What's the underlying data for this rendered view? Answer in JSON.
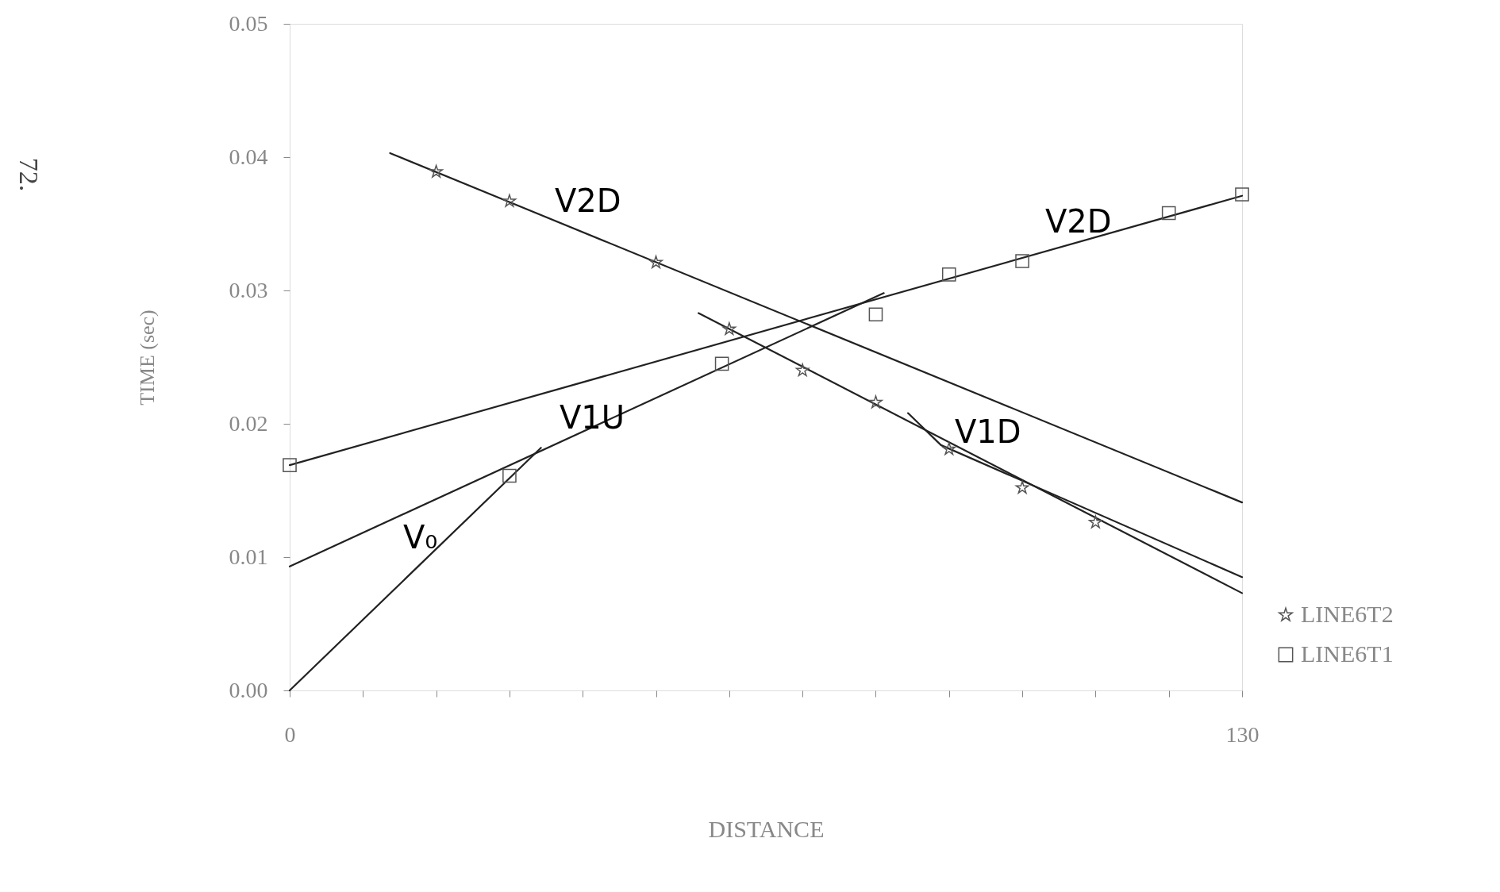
{
  "chart_data": {
    "type": "scatter",
    "xlabel": "DISTANCE",
    "ylabel": "TIME (sec)",
    "xlim": [
      0,
      130
    ],
    "ylim": [
      0,
      0.05
    ],
    "xticks": [
      0,
      {
        "value": 10,
        "label": null
      },
      {
        "value": 20,
        "label": null
      },
      {
        "value": 30,
        "label": null
      },
      {
        "value": 40,
        "label": null
      },
      {
        "value": 50,
        "label": null
      },
      {
        "value": 60,
        "label": null
      },
      {
        "value": 70,
        "label": null
      },
      {
        "value": 80,
        "label": null
      },
      {
        "value": 90,
        "label": null
      },
      {
        "value": 100,
        "label": null
      },
      {
        "value": 110,
        "label": null
      },
      {
        "value": 120,
        "label": null
      },
      130
    ],
    "yticks": [
      {
        "value": 0,
        "label": "0.00"
      },
      {
        "value": 0.01,
        "label": "0.01"
      },
      {
        "value": 0.02,
        "label": "0.02"
      },
      {
        "value": 0.03,
        "label": "0.03"
      },
      {
        "value": 0.04,
        "label": "0.04"
      },
      {
        "value": 0.05,
        "label": "0.05"
      }
    ],
    "grid": false,
    "legend": "bottom right",
    "series": [
      {
        "name": "LINE6T2",
        "marker": "star",
        "color": "#555555",
        "x": [
          20,
          30,
          50,
          60,
          70,
          80,
          90,
          100,
          110
        ],
        "values": [
          0.0389,
          0.0367,
          0.0321,
          0.0271,
          0.024,
          0.0216,
          0.0181,
          0.0152,
          0.0126
        ]
      },
      {
        "name": "LINE6T1",
        "marker": "square",
        "color": "#555555",
        "x": [
          0,
          30,
          59,
          80,
          90,
          100,
          120,
          130
        ],
        "values": [
          0.0169,
          0.0161,
          0.0245,
          0.0282,
          0.0312,
          0.0322,
          0.0358,
          0.0372
        ]
      },
      {
        "type": "line",
        "color": "#222222",
        "x": [
          13.7,
          130
        ],
        "values": [
          0.0403,
          0.0141
        ]
      },
      {
        "type": "line",
        "color": "#222222",
        "x": [
          0,
          130
        ],
        "values": [
          0.0169,
          0.0371
        ]
      },
      {
        "type": "line",
        "color": "#222222",
        "x": [
          0,
          81.1
        ],
        "values": [
          0.0093,
          0.0298
        ]
      },
      {
        "type": "line",
        "color": "#222222",
        "x": [
          0,
          34.3
        ],
        "values": [
          0,
          0.0182
        ]
      },
      {
        "type": "line",
        "color": "#222222",
        "x": [
          55.8,
          130
        ],
        "values": [
          0.0283,
          0.0073
        ]
      },
      {
        "type": "line",
        "color": "#222222",
        "x": [
          84.4,
          88.9,
          130
        ],
        "values": [
          0.0208,
          0.0184,
          0.0085
        ]
      }
    ],
    "annotations": [
      "V2D",
      "V2D",
      "V1U",
      "V₀",
      "V1D",
      "72."
    ]
  }
}
